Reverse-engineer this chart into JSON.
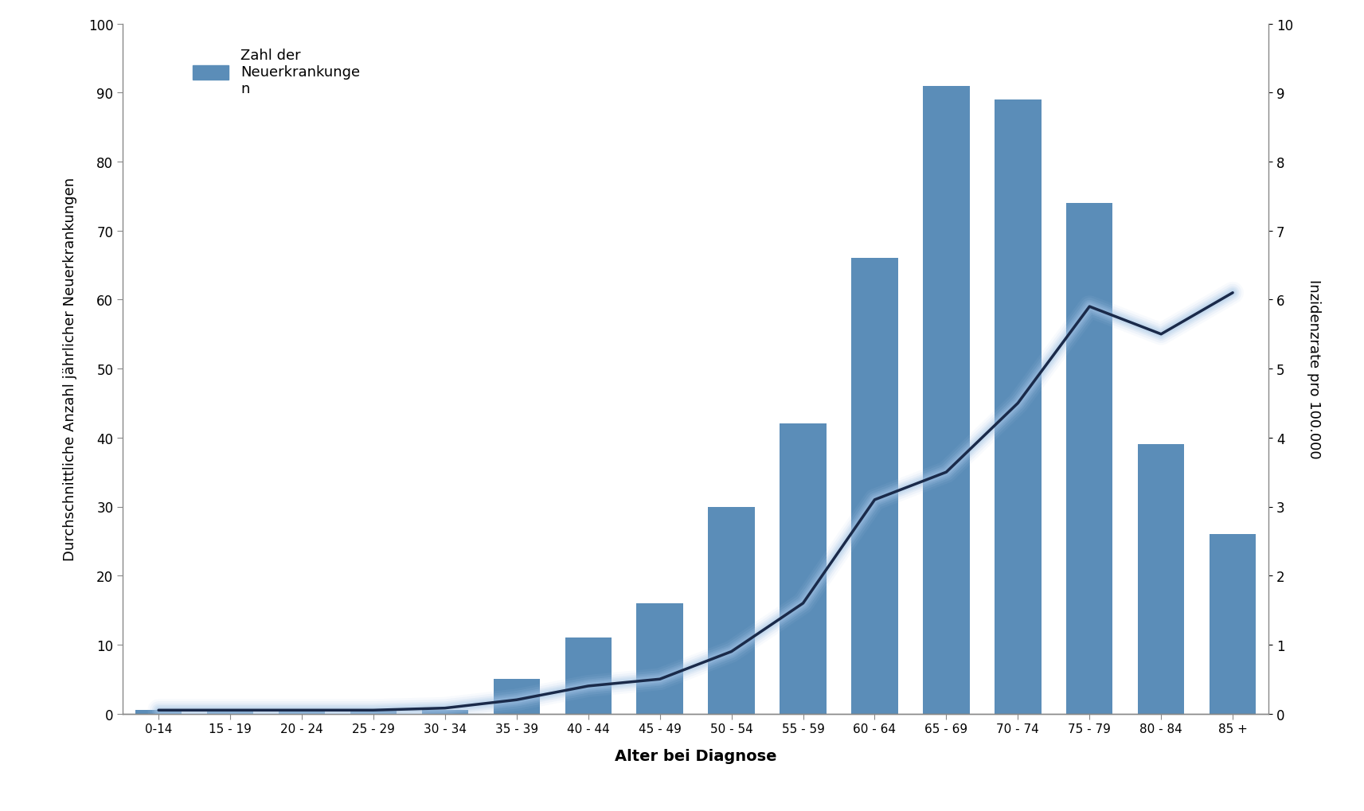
{
  "categories": [
    "0-14",
    "15 - 19",
    "20 - 24",
    "25 - 29",
    "30 - 34",
    "35 - 39",
    "40 - 44",
    "45 - 49",
    "50 - 54",
    "55 - 59",
    "60 - 64",
    "65 - 69",
    "70 - 74",
    "75 - 79",
    "80 - 84",
    "85 +"
  ],
  "bar_values": [
    0.5,
    0.5,
    0.5,
    0.5,
    0.5,
    5,
    11,
    16,
    30,
    42,
    66,
    91,
    89,
    74,
    39,
    26
  ],
  "line_values": [
    0.05,
    0.05,
    0.05,
    0.05,
    0.08,
    0.2,
    0.4,
    0.5,
    0.9,
    1.6,
    3.1,
    3.5,
    4.5,
    5.9,
    5.5,
    6.1
  ],
  "bar_color": "#5B8DB8",
  "line_color": "#1a2a4a",
  "line_shadow_color": "#a8c8e8",
  "ylabel_left": "Durchschnittliche Anzahl jährlicher Neuerkrankungen",
  "ylabel_right": "Inzidenzrate pro 100.000",
  "xlabel": "Alter bei Diagnose",
  "ylim_left": [
    0,
    100
  ],
  "ylim_right": [
    0,
    10
  ],
  "yticks_left": [
    0,
    10,
    20,
    30,
    40,
    50,
    60,
    70,
    80,
    90,
    100
  ],
  "yticks_right": [
    0,
    1,
    2,
    3,
    4,
    5,
    6,
    7,
    8,
    9,
    10
  ],
  "legend_label": "Zahl der\nNeuerkrankunge\nn",
  "background_color": "#ffffff",
  "figsize": [
    17.13,
    10.2
  ],
  "dpi": 100
}
